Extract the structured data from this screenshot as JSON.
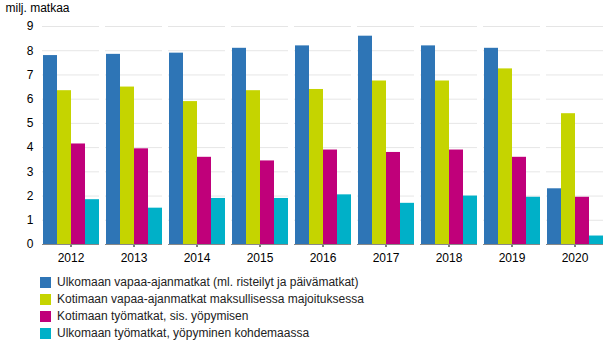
{
  "chart_data": {
    "type": "bar",
    "y_label": "milj. matkaa",
    "categories": [
      "2012",
      "2013",
      "2014",
      "2015",
      "2016",
      "2017",
      "2018",
      "2019",
      "2020"
    ],
    "series": [
      {
        "name": "Ulkomaan vapaa-ajanmatkat (ml. risteilyt ja päivämatkat)",
        "color": "#2E75B6",
        "values": [
          7.8,
          7.85,
          7.9,
          8.1,
          8.2,
          8.6,
          8.2,
          8.1,
          2.3
        ]
      },
      {
        "name": "Kotimaan vapaa-ajanmatkat maksullisessa majoituksessa",
        "color": "#C5D400",
        "values": [
          6.35,
          6.5,
          5.9,
          6.35,
          6.4,
          6.75,
          6.75,
          7.25,
          5.4
        ]
      },
      {
        "name": "Kotimaan työmatkat, sis. yöpymisen",
        "color": "#C0007A",
        "values": [
          4.15,
          3.95,
          3.6,
          3.45,
          3.9,
          3.8,
          3.9,
          3.6,
          1.95
        ]
      },
      {
        "name": "Ulkomaan työmatkat, yöpyminen kohdemaassa",
        "color": "#00B0C8",
        "values": [
          1.85,
          1.5,
          1.9,
          1.9,
          2.05,
          1.7,
          2.0,
          1.95,
          0.35
        ]
      }
    ],
    "ylim": [
      0,
      9
    ],
    "yticks": [
      0,
      1,
      2,
      3,
      4,
      5,
      6,
      7,
      8,
      9
    ],
    "grid": true,
    "legend": "bottom"
  }
}
